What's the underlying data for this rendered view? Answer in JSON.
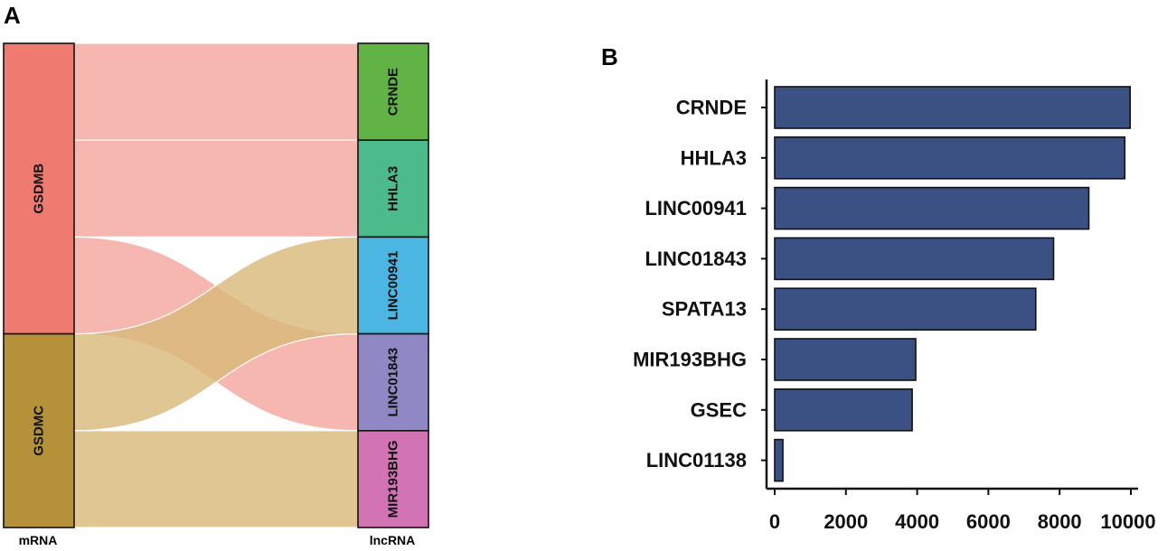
{
  "panels": {
    "a": "A",
    "b": "B"
  },
  "colors": {
    "gsdmb": "#ef7b70",
    "gsdmc": "#b5913a",
    "flow_gsdmb": "#f4a79f",
    "flow_gsdmc": "#d8b97a",
    "crnde": "#62b346",
    "hhla3": "#4dba8c",
    "linc00941": "#4cb6e3",
    "linc01843": "#8f88c4",
    "mir193bhg": "#d274b3",
    "bar": "#3b5083"
  },
  "chart_data": [
    {
      "type": "sankey",
      "axis_labels": {
        "left": "mRNA",
        "right": "lncRNA"
      },
      "left_nodes": [
        {
          "id": "GSDMB",
          "label": "GSDMB",
          "color_key": "gsdmb",
          "count": 3
        },
        {
          "id": "GSDMC",
          "label": "GSDMC",
          "color_key": "gsdmc",
          "count": 2
        }
      ],
      "right_nodes": [
        {
          "id": "CRNDE",
          "label": "CRNDE",
          "color_key": "crnde",
          "count": 1
        },
        {
          "id": "HHLA3",
          "label": "HHLA3",
          "color_key": "hhla3",
          "count": 1
        },
        {
          "id": "LINC00941",
          "label": "LINC00941",
          "color_key": "linc00941",
          "count": 1
        },
        {
          "id": "LINC01843",
          "label": "LINC01843",
          "color_key": "linc01843",
          "count": 1
        },
        {
          "id": "MIR193BHG",
          "label": "MIR193BHG",
          "color_key": "mir193bhg",
          "count": 1
        }
      ],
      "links": [
        {
          "source": "GSDMB",
          "target": "CRNDE",
          "value": 1
        },
        {
          "source": "GSDMB",
          "target": "HHLA3",
          "value": 1
        },
        {
          "source": "GSDMB",
          "target": "LINC01843",
          "value": 1
        },
        {
          "source": "GSDMC",
          "target": "LINC00941",
          "value": 1
        },
        {
          "source": "GSDMC",
          "target": "MIR193BHG",
          "value": 1
        }
      ]
    },
    {
      "type": "bar",
      "orientation": "horizontal",
      "categories": [
        "CRNDE",
        "HHLA3",
        "LINC00941",
        "LINC01843",
        "SPATA13",
        "MIR193BHG",
        "GSEC",
        "LINC01138"
      ],
      "values": [
        9980,
        9830,
        8820,
        7830,
        7330,
        3960,
        3860,
        230
      ],
      "xlim": [
        0,
        10000
      ],
      "xticks": [
        "0",
        "2000",
        "4000",
        "6000",
        "8000",
        "10000"
      ],
      "xtick_values": [
        0,
        2000,
        4000,
        6000,
        8000,
        10000
      ],
      "title": "",
      "xlabel": "",
      "ylabel": ""
    }
  ]
}
